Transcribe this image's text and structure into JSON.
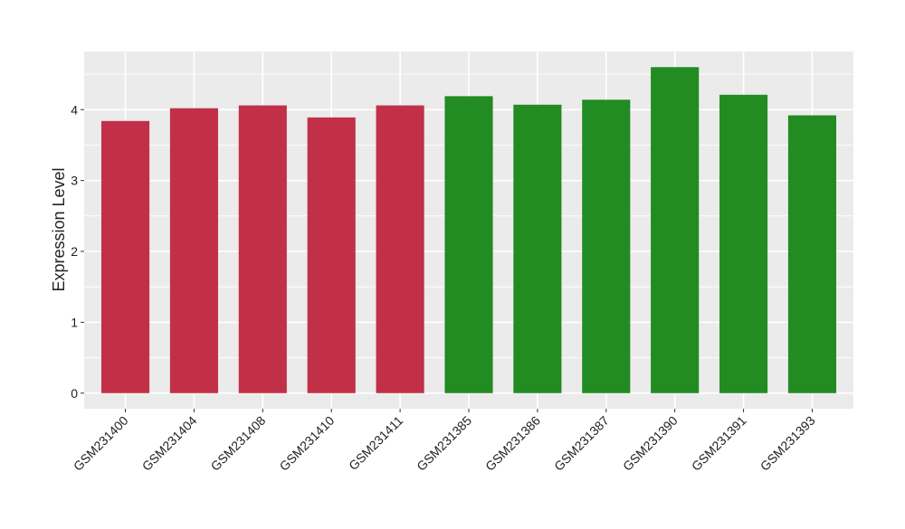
{
  "chart_data": {
    "type": "bar",
    "title": "",
    "xlabel": "",
    "ylabel": "Expression Level",
    "ylim": [
      -0.22,
      4.82
    ],
    "yticks": [
      0,
      1,
      2,
      3,
      4
    ],
    "grid": true,
    "legend": "none",
    "colors": {
      "panel": "#EBEBEB",
      "grid": "#FFFFFF",
      "group_a": "#C13047",
      "group_b": "#228B22"
    },
    "categories": [
      "GSM231400",
      "GSM231404",
      "GSM231408",
      "GSM231410",
      "GSM231411",
      "GSM231385",
      "GSM231386",
      "GSM231387",
      "GSM231390",
      "GSM231391",
      "GSM231393"
    ],
    "values": [
      3.84,
      4.02,
      4.06,
      3.89,
      4.06,
      4.19,
      4.07,
      4.14,
      4.6,
      4.21,
      3.92
    ],
    "bar_colors": [
      "#C13047",
      "#C13047",
      "#C13047",
      "#C13047",
      "#C13047",
      "#228B22",
      "#228B22",
      "#228B22",
      "#228B22",
      "#228B22",
      "#228B22"
    ]
  }
}
